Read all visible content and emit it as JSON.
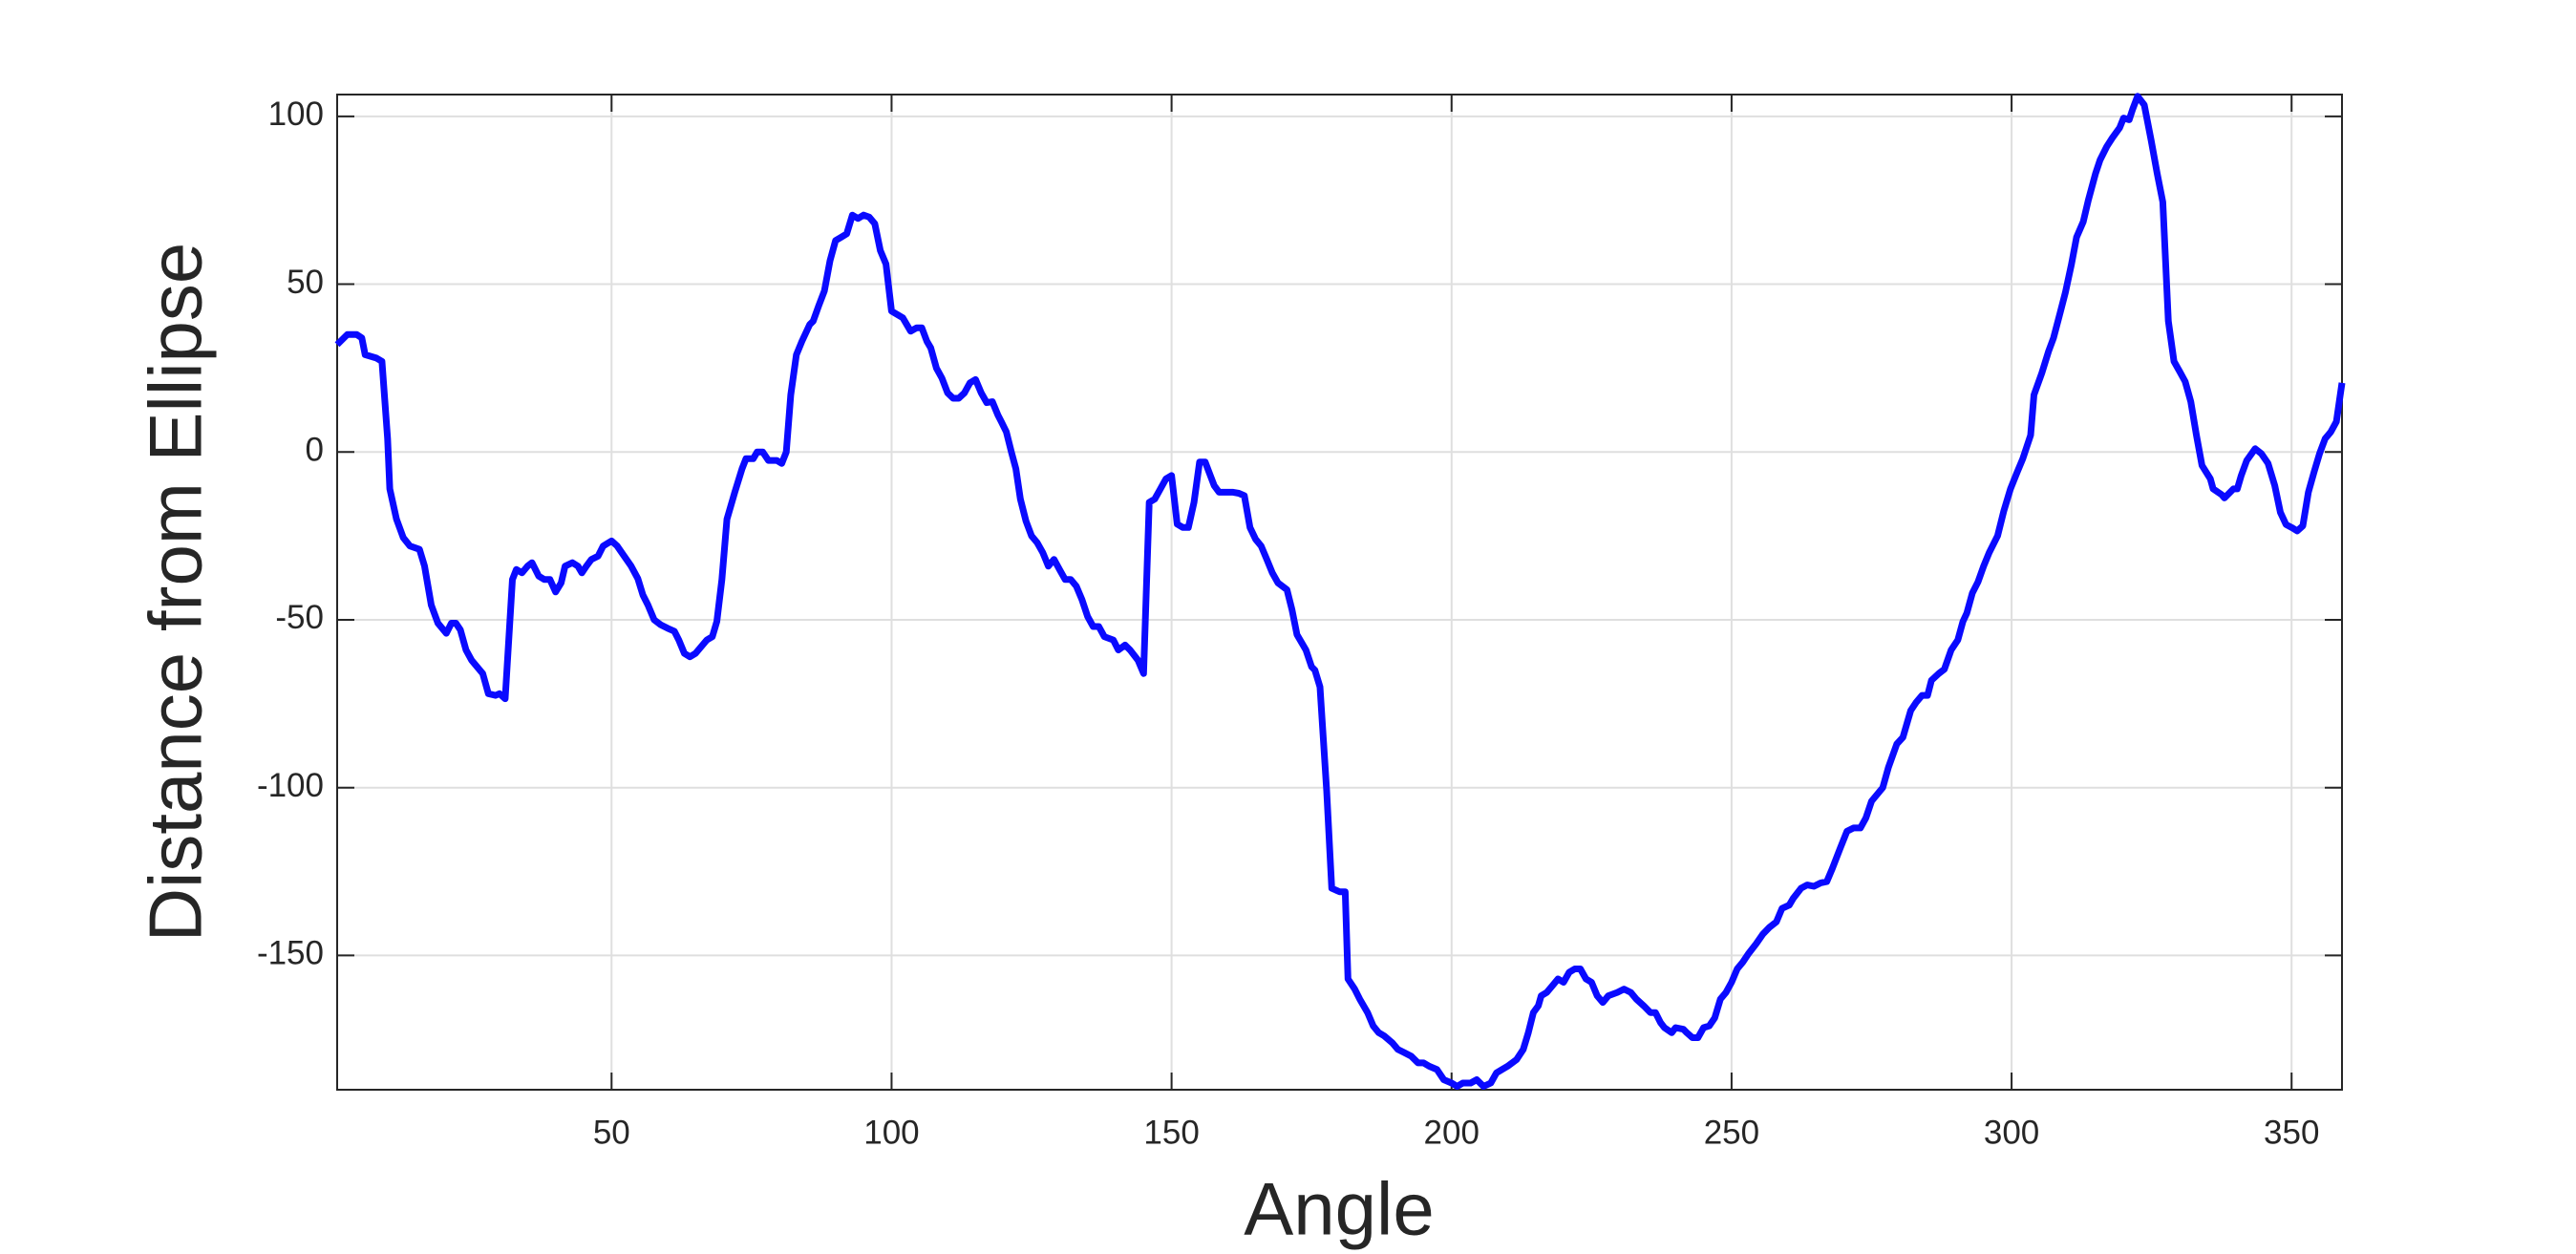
{
  "chart_data": {
    "type": "line",
    "xlabel": "Angle",
    "ylabel": "Distance from Ellipse",
    "xlim": [
      1,
      359
    ],
    "ylim": [
      -190,
      106.5
    ],
    "xticks": [
      50,
      100,
      150,
      200,
      250,
      300,
      350
    ],
    "yticks": [
      -150,
      -100,
      -50,
      0,
      50,
      100
    ],
    "grid": true,
    "series": [
      {
        "color": "#0a0aff",
        "x": [
          1,
          2.8,
          4.5,
          5.4,
          6,
          8,
          9,
          10,
          10.4,
          11.6,
          12.8,
          14,
          15.7,
          16.6,
          17.8,
          19,
          20.5,
          21.4,
          22.2,
          23,
          24,
          25,
          27,
          28,
          29.3,
          30,
          31,
          32.3,
          33,
          34,
          35,
          35.8,
          37,
          38,
          39,
          40,
          41,
          41.7,
          43,
          44,
          44.7,
          45.5,
          46.4,
          47.6,
          48.5,
          50,
          51,
          52,
          53.5,
          54.7,
          55.6,
          56.5,
          57.6,
          58.8,
          60,
          61.2,
          62,
          63,
          64,
          65,
          66,
          67,
          68,
          68.8,
          69.7,
          70.6,
          72,
          73.3,
          74,
          75.3,
          76,
          77,
          78,
          79.5,
          80.4,
          81.2,
          82,
          83,
          84,
          85.4,
          86,
          87,
          88,
          89,
          90,
          91,
          92,
          93,
          94,
          95,
          96,
          97,
          98,
          99,
          100,
          101,
          102,
          103.4,
          104.5,
          105.4,
          106.3,
          107,
          108,
          109,
          110,
          111,
          112,
          113,
          114,
          115,
          116,
          117,
          118,
          119,
          119.6,
          120.5,
          121.4,
          122.2,
          123,
          124,
          125,
          126,
          127,
          128,
          129,
          130,
          131,
          132,
          133,
          134,
          135,
          136,
          137,
          138,
          139.6,
          140.5,
          141.7,
          142.6,
          144,
          145,
          146,
          147,
          148,
          149,
          150,
          151,
          152,
          153,
          154,
          155,
          156,
          157.6,
          158.5,
          159.7,
          161,
          162,
          163,
          164,
          165,
          166,
          167,
          168,
          169,
          170.6,
          171.5,
          172.4,
          174,
          175,
          175.6,
          176.5,
          177.7,
          178.6,
          180,
          181,
          181.5,
          182.7,
          183.6,
          185,
          186,
          187,
          188,
          189.4,
          190.4,
          191.6,
          192.8,
          194,
          195,
          196,
          197.4,
          198.6,
          200,
          201,
          202,
          203.4,
          204.5,
          205.7,
          207,
          208,
          209,
          210,
          211.6,
          212.8,
          213.7,
          214.6,
          215.5,
          216,
          217,
          218,
          219,
          220,
          221,
          222,
          223,
          224,
          225,
          226,
          227,
          228,
          229.6,
          230.8,
          232,
          233,
          234.3,
          235.5,
          236.4,
          237.3,
          238,
          239.3,
          240,
          241.4,
          242,
          243,
          244,
          245,
          246,
          247,
          248,
          249,
          250,
          251,
          252,
          253,
          254.4,
          255.6,
          256.7,
          258,
          259,
          260.3,
          261,
          262.4,
          263.5,
          264.7,
          265.9,
          267,
          268,
          269.4,
          270.6,
          271.8,
          273,
          274,
          275,
          276,
          277,
          278,
          279.5,
          280.6,
          282,
          283,
          284,
          285,
          285.7,
          287,
          288,
          289.2,
          290.4,
          291.3,
          292,
          293,
          294,
          295,
          296,
          297.5,
          298.6,
          299.8,
          301,
          302,
          303.4,
          304,
          305.4,
          306.6,
          307.5,
          308.7,
          309.6,
          310.7,
          311.6,
          312.8,
          313.7,
          315,
          315.8,
          317,
          318,
          319.3,
          320,
          321,
          321.6,
          322.5,
          323.7,
          324.9,
          326,
          327,
          328,
          329,
          330,
          331,
          332,
          333,
          334,
          335.5,
          336,
          337.5,
          338,
          339.6,
          340.3,
          341,
          342,
          343.5,
          344.6,
          345.8,
          347,
          348,
          349,
          350,
          351,
          352,
          353,
          354,
          355,
          356,
          357,
          358,
          359
        ],
        "values": [
          32,
          35,
          35,
          34,
          29,
          28,
          27,
          4,
          -11,
          -20,
          -25.5,
          -28,
          -29,
          -34,
          -45.6,
          -51,
          -54,
          -51,
          -51,
          -53,
          -59,
          -62,
          -66,
          -72,
          -72.5,
          -72,
          -73.5,
          -38,
          -35,
          -36,
          -34,
          -33,
          -37,
          -38,
          -38,
          -41.7,
          -39,
          -34,
          -33,
          -34,
          -36,
          -34,
          -32,
          -31,
          -28,
          -26.5,
          -28,
          -30.4,
          -34,
          -37.7,
          -42.6,
          -45.6,
          -50,
          -51.5,
          -52.5,
          -53.4,
          -56,
          -60,
          -61,
          -60,
          -58,
          -56,
          -55,
          -50.5,
          -38,
          -20,
          -12,
          -5,
          -2,
          -2,
          0,
          0,
          -2.5,
          -2.5,
          -3.4,
          0,
          17,
          29,
          33,
          38,
          39,
          43.6,
          48,
          57,
          63,
          64,
          65,
          70.6,
          69.6,
          70.6,
          70,
          68,
          60,
          56,
          42,
          41,
          40,
          36,
          37,
          37,
          33,
          31,
          25,
          22,
          17.6,
          16,
          16,
          17.6,
          20.6,
          21.6,
          17.6,
          14.7,
          15,
          11,
          9,
          6,
          0,
          -5,
          -14,
          -20.6,
          -25,
          -27,
          -30,
          -34,
          -32,
          -35,
          -38,
          -38,
          -40,
          -44,
          -49,
          -52,
          -52,
          -55,
          -56,
          -59,
          -57.5,
          -59,
          -62,
          -66,
          -15,
          -14,
          -11,
          -8,
          -7,
          -21.5,
          -22.5,
          -22.5,
          -15,
          -3,
          -3,
          -10,
          -12,
          -12,
          -12,
          -12.3,
          -13,
          -22.5,
          -26,
          -28,
          -32,
          -36,
          -39,
          -41,
          -47,
          -54.4,
          -59,
          -64,
          -65,
          -70,
          -101,
          -130,
          -131,
          -131,
          -157,
          -160,
          -163,
          -167,
          -171,
          -173,
          -174,
          -176,
          -178,
          -179,
          -180,
          -182,
          -182,
          -183,
          -184,
          -187,
          -188,
          -189,
          -188,
          -188,
          -187,
          -189,
          -188,
          -185,
          -184,
          -183,
          -181,
          -178,
          -173,
          -167,
          -165,
          -162,
          -161,
          -159,
          -157,
          -158,
          -155,
          -154,
          -154,
          -157,
          -158,
          -162,
          -164,
          -162,
          -161,
          -160,
          -161,
          -163,
          -165,
          -167,
          -167,
          -170,
          -171.5,
          -173,
          -171.5,
          -172,
          -173,
          -174.5,
          -174.5,
          -171.5,
          -171,
          -168.6,
          -163,
          -161,
          -158,
          -154,
          -152,
          -149.5,
          -146.5,
          -143.6,
          -141.7,
          -140,
          -136,
          -135,
          -133,
          -130,
          -129,
          -129.4,
          -128.4,
          -128,
          -124,
          -118,
          -113,
          -112,
          -112,
          -109,
          -104,
          -102,
          -100,
          -94,
          -87,
          -85,
          -77,
          -74.5,
          -72.5,
          -72.5,
          -68,
          -66,
          -64.7,
          -59,
          -56,
          -50.5,
          -48,
          -42,
          -38.7,
          -34,
          -30,
          -25,
          -17.6,
          -11,
          -6,
          -2,
          5,
          17,
          23.5,
          30,
          34,
          41.7,
          47.5,
          56,
          64,
          68.6,
          75,
          83,
          87,
          91,
          93.6,
          96.6,
          99.5,
          99,
          102,
          106,
          103.4,
          93,
          83,
          74.5,
          39,
          27,
          24,
          21,
          15,
          5,
          -4,
          -8,
          -11,
          -12.7,
          -13.7,
          -11,
          -11,
          -7,
          -2.5,
          1,
          -0.5,
          -3.4,
          -10,
          -18,
          -21.6,
          -22.5,
          -23.5,
          -22,
          -12,
          -6,
          -0.5,
          4,
          6,
          9,
          20.6
        ]
      }
    ]
  }
}
